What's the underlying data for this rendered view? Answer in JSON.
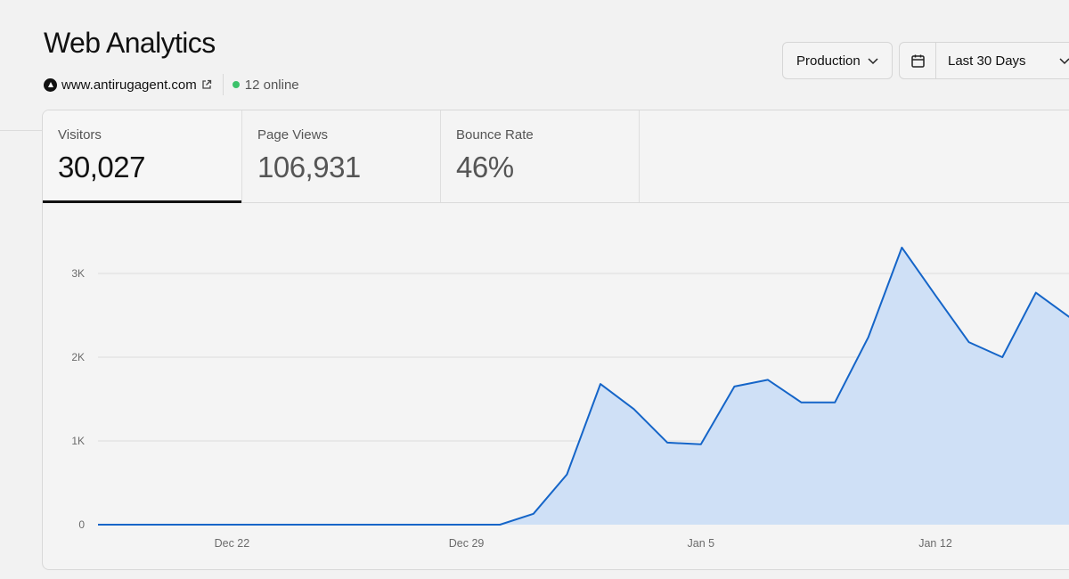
{
  "header": {
    "title": "Web Analytics",
    "site_domain": "www.antirugagent.com",
    "online": "12 online"
  },
  "controls": {
    "environment": "Production",
    "date_range": "Last 30 Days"
  },
  "tabs": [
    {
      "label": "Visitors",
      "value": "30,027",
      "active": true
    },
    {
      "label": "Page Views",
      "value": "106,931",
      "active": false
    },
    {
      "label": "Bounce Rate",
      "value": "46%",
      "active": false
    }
  ],
  "colors": {
    "line": "#1565c8",
    "fill": "#cfe0f6",
    "online_dot": "#3cc26b"
  },
  "chart_data": {
    "type": "area",
    "series": [
      {
        "values": [
          0,
          0,
          0,
          0,
          0,
          0,
          0,
          0,
          0,
          0,
          0,
          0,
          0,
          130,
          600,
          1680,
          1380,
          980,
          960,
          1650,
          1730,
          1460,
          1460,
          2240,
          3310,
          2740,
          2180,
          2000,
          2770,
          2480
        ]
      }
    ],
    "x": [
      "Dec 18",
      "Dec 19",
      "Dec 20",
      "Dec 21",
      "Dec 22",
      "Dec 23",
      "Dec 24",
      "Dec 25",
      "Dec 26",
      "Dec 27",
      "Dec 28",
      "Dec 29",
      "Dec 30",
      "Dec 31",
      "Jan 1",
      "Jan 2",
      "Jan 3",
      "Jan 4",
      "Jan 5",
      "Jan 6",
      "Jan 7",
      "Jan 8",
      "Jan 9",
      "Jan 10",
      "Jan 11",
      "Jan 12",
      "Jan 13",
      "Jan 14",
      "Jan 15",
      "Jan 16"
    ],
    "x_ticks": [
      "Dec 22",
      "Dec 29",
      "Jan 5",
      "Jan 12"
    ],
    "y_ticks": [
      "0",
      "1K",
      "2K",
      "3K"
    ],
    "y_tick_values": [
      0,
      1000,
      2000,
      3000
    ],
    "ylim": [
      0,
      3000
    ],
    "grid": true
  }
}
